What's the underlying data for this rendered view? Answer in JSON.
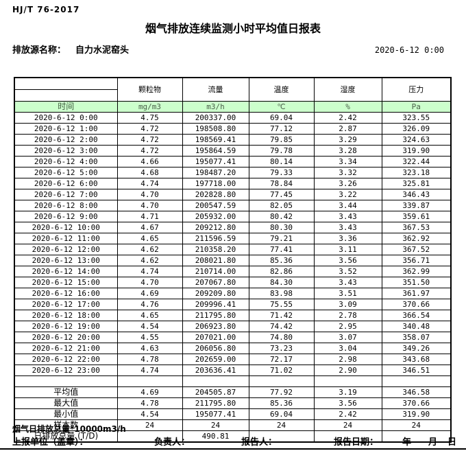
{
  "page": {
    "standard": "HJ/T  76-2017",
    "title": "烟气排放连续监测小时平均值日报表",
    "source_label": "排放源名称：",
    "source_name": "自力水泥窑头",
    "datetime": "2020-6-12 0:00"
  },
  "table": {
    "time_header": "时间",
    "columns": [
      {
        "name": "颗粒物",
        "unit": "mg/m3"
      },
      {
        "name": "流量",
        "unit": "m3/h"
      },
      {
        "name": "温度",
        "unit": "℃"
      },
      {
        "name": "湿度",
        "unit": "%"
      },
      {
        "name": "压力",
        "unit": "Pa"
      }
    ],
    "rows": [
      {
        "time": "2020-6-12 0:00",
        "values": [
          "4.75",
          "200337.00",
          "69.04",
          "2.42",
          "323.55"
        ]
      },
      {
        "time": "2020-6-12 1:00",
        "values": [
          "4.72",
          "198508.80",
          "77.12",
          "2.87",
          "326.09"
        ]
      },
      {
        "time": "2020-6-12 2:00",
        "values": [
          "4.72",
          "198569.41",
          "79.85",
          "3.29",
          "324.63"
        ]
      },
      {
        "time": "2020-6-12 3:00",
        "values": [
          "4.72",
          "195864.59",
          "79.78",
          "3.28",
          "319.90"
        ]
      },
      {
        "time": "2020-6-12 4:00",
        "values": [
          "4.66",
          "195077.41",
          "80.14",
          "3.34",
          "322.44"
        ]
      },
      {
        "time": "2020-6-12 5:00",
        "values": [
          "4.68",
          "198487.20",
          "79.33",
          "3.32",
          "323.18"
        ]
      },
      {
        "time": "2020-6-12 6:00",
        "values": [
          "4.74",
          "197718.00",
          "78.84",
          "3.26",
          "325.81"
        ]
      },
      {
        "time": "2020-6-12 7:00",
        "values": [
          "4.70",
          "202828.80",
          "77.45",
          "3.22",
          "346.43"
        ]
      },
      {
        "time": "2020-6-12 8:00",
        "values": [
          "4.70",
          "200547.59",
          "82.05",
          "3.44",
          "339.87"
        ]
      },
      {
        "time": "2020-6-12 9:00",
        "values": [
          "4.71",
          "205932.00",
          "80.42",
          "3.43",
          "359.61"
        ]
      },
      {
        "time": "2020-6-12 10:00",
        "values": [
          "4.67",
          "209212.80",
          "80.30",
          "3.43",
          "367.53"
        ]
      },
      {
        "time": "2020-6-12 11:00",
        "values": [
          "4.65",
          "211596.59",
          "79.21",
          "3.36",
          "362.92"
        ]
      },
      {
        "time": "2020-6-12 12:00",
        "values": [
          "4.62",
          "210358.20",
          "77.41",
          "3.11",
          "367.52"
        ]
      },
      {
        "time": "2020-6-12 13:00",
        "values": [
          "4.62",
          "208021.80",
          "85.36",
          "3.56",
          "356.71"
        ]
      },
      {
        "time": "2020-6-12 14:00",
        "values": [
          "4.74",
          "210714.00",
          "82.86",
          "3.52",
          "362.99"
        ]
      },
      {
        "time": "2020-6-12 15:00",
        "values": [
          "4.70",
          "207067.80",
          "84.30",
          "3.43",
          "351.50"
        ]
      },
      {
        "time": "2020-6-12 16:00",
        "values": [
          "4.69",
          "209209.80",
          "83.98",
          "3.51",
          "361.97"
        ]
      },
      {
        "time": "2020-6-12 17:00",
        "values": [
          "4.76",
          "209996.41",
          "75.55",
          "3.09",
          "370.66"
        ]
      },
      {
        "time": "2020-6-12 18:00",
        "values": [
          "4.65",
          "211795.80",
          "71.42",
          "2.78",
          "366.54"
        ]
      },
      {
        "time": "2020-6-12 19:00",
        "values": [
          "4.54",
          "206923.80",
          "74.42",
          "2.95",
          "340.48"
        ]
      },
      {
        "time": "2020-6-12 20:00",
        "values": [
          "4.55",
          "207021.00",
          "74.80",
          "3.07",
          "358.07"
        ]
      },
      {
        "time": "2020-6-12 21:00",
        "values": [
          "4.63",
          "206056.80",
          "73.23",
          "3.04",
          "349.26"
        ]
      },
      {
        "time": "2020-6-12 22:00",
        "values": [
          "4.78",
          "202659.00",
          "72.17",
          "2.98",
          "343.68"
        ]
      },
      {
        "time": "2020-6-12 23:00",
        "values": [
          "4.74",
          "203636.41",
          "71.02",
          "2.90",
          "346.51"
        ]
      }
    ],
    "summary": [
      {
        "label": "平均值",
        "values": [
          "4.69",
          "204505.87",
          "77.92",
          "3.19",
          "346.58"
        ]
      },
      {
        "label": "最大值",
        "values": [
          "4.78",
          "211795.80",
          "85.36",
          "3.56",
          "370.66"
        ]
      },
      {
        "label": "最小值",
        "values": [
          "4.54",
          "195077.41",
          "69.04",
          "2.42",
          "319.90"
        ]
      },
      {
        "label": "样本数",
        "values": [
          "24",
          "24",
          "24",
          "24",
          "24"
        ]
      },
      {
        "label": "日排放总量 (T/D)",
        "values": [
          "",
          "490.81",
          "",
          "",
          ""
        ]
      }
    ]
  },
  "footer": {
    "note": "烟气日排放总量*10000m3/h",
    "report_unit_label": "上报单位（盖章）：",
    "responsible_label": "负责人：",
    "reporter_label": "报告人：",
    "report_date_label": "报告日期：",
    "year_label": "年",
    "month_label": "月",
    "day_label": "日"
  },
  "colors": {
    "header_row_green": "#ccffcc",
    "border_black": "#000000"
  }
}
